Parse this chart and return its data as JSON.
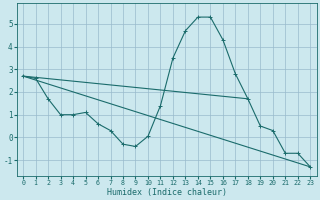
{
  "xlabel": "Humidex (Indice chaleur)",
  "background_color": "#cce8ee",
  "grid_color": "#99bbcc",
  "line_color": "#1a6b6b",
  "xlim": [
    -0.5,
    23.5
  ],
  "ylim": [
    -1.7,
    5.9
  ],
  "yticks": [
    -1,
    0,
    1,
    2,
    3,
    4,
    5
  ],
  "xticks": [
    0,
    1,
    2,
    3,
    4,
    5,
    6,
    7,
    8,
    9,
    10,
    11,
    12,
    13,
    14,
    15,
    16,
    17,
    18,
    19,
    20,
    21,
    22,
    23
  ],
  "curve": {
    "x": [
      0,
      1,
      2,
      3,
      4,
      5,
      6,
      7,
      8,
      9,
      10,
      11,
      12,
      13,
      14,
      15,
      16,
      17,
      18,
      19,
      20,
      21,
      22,
      23
    ],
    "y": [
      2.7,
      2.6,
      1.7,
      1.0,
      1.0,
      1.1,
      0.6,
      0.3,
      -0.3,
      -0.4,
      0.05,
      1.4,
      3.5,
      4.7,
      5.3,
      5.3,
      4.3,
      2.8,
      1.7,
      0.5,
      0.3,
      -0.7,
      -0.7,
      -1.3
    ]
  },
  "line_flat": {
    "x": [
      0,
      18
    ],
    "y": [
      2.7,
      1.7
    ]
  },
  "line_diag": {
    "x": [
      0,
      23
    ],
    "y": [
      2.7,
      -1.3
    ]
  }
}
